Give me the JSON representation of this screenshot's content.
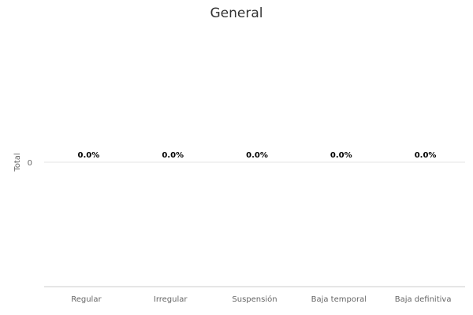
{
  "chart_data": {
    "type": "bar",
    "title": "General",
    "xlabel": "",
    "ylabel": "Total",
    "categories": [
      "Regular",
      "Irregular",
      "Suspensión",
      "Baja temporal",
      "Baja definitiva"
    ],
    "values": [
      0,
      0,
      0,
      0,
      0
    ],
    "data_labels": [
      "0.0%",
      "0.0%",
      "0.0%",
      "0.0%",
      "0.0%"
    ],
    "yticks": [
      "0"
    ],
    "grid": true,
    "legend": "none"
  }
}
